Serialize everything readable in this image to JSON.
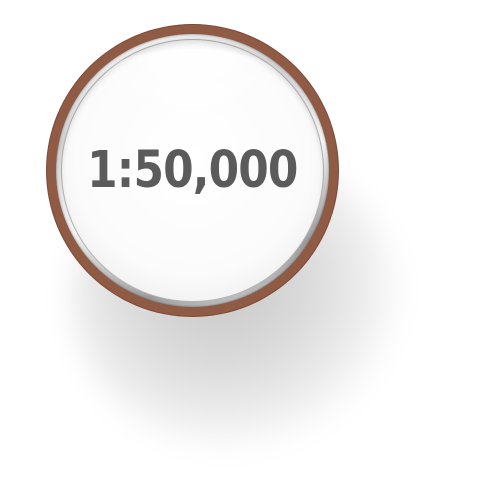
{
  "scale": {
    "label": "1:50,000"
  },
  "colors": {
    "ring": "#8f5b45",
    "text": "#5b5b5b",
    "face": "#ffffff"
  }
}
